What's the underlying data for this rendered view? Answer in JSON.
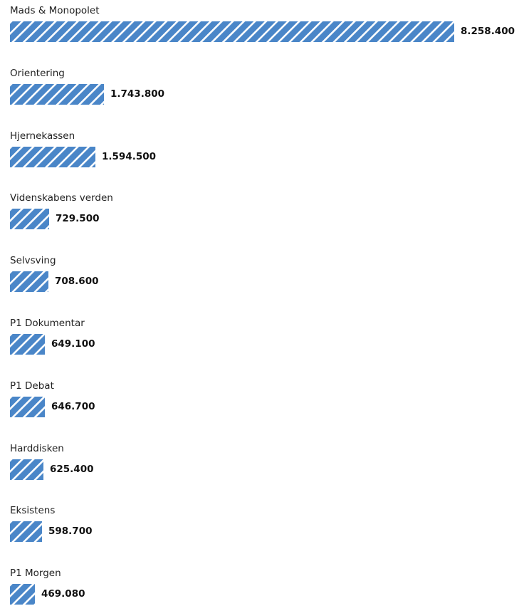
{
  "chart_data": {
    "type": "bar",
    "orientation": "horizontal",
    "categories": [
      "Mads & Monopolet",
      "Orientering",
      "Hjernekassen",
      "Videnskabens verden",
      "Selvsving",
      "P1 Dokumentar",
      "P1 Debat",
      "Harddisken",
      "Eksistens",
      "P1 Morgen"
    ],
    "values": [
      8258400,
      1743800,
      1594500,
      729500,
      708600,
      649100,
      646700,
      625400,
      598700,
      469080
    ],
    "value_labels": [
      "8.258.400",
      "1.743.800",
      "1.594.500",
      "729.500",
      "708.600",
      "649.100",
      "646.700",
      "625.400",
      "598.700",
      "469.080"
    ],
    "bar_color": "#4a86c8",
    "bar_pattern": "diagonal-hatch",
    "xlim": [
      0,
      8258400
    ],
    "grid": false,
    "legend": "none"
  }
}
